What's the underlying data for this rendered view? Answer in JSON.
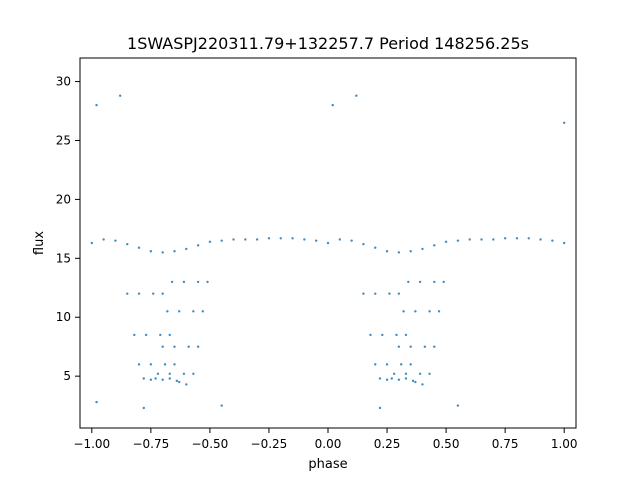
{
  "chart_data": {
    "type": "scatter",
    "title": "1SWASPJ220311.79+132257.7 Period 148256.25s",
    "xlabel": "phase",
    "ylabel": "flux",
    "xlim": [
      -1.05,
      1.05
    ],
    "ylim": [
      0.6,
      32.0
    ],
    "xticks": [
      -1.0,
      -0.75,
      -0.5,
      -0.25,
      0.0,
      0.25,
      0.5,
      0.75,
      1.0
    ],
    "xtick_labels": [
      "−1.00",
      "−0.75",
      "−0.50",
      "−0.25",
      "0.00",
      "0.25",
      "0.50",
      "0.75",
      "1.00"
    ],
    "yticks": [
      5,
      10,
      15,
      20,
      25,
      30
    ],
    "ytick_labels": [
      "5",
      "10",
      "15",
      "20",
      "25",
      "30"
    ],
    "grid": false,
    "legend": "none",
    "marker_color": "#1f77b4",
    "series": [
      {
        "values_note": "",
        "points": [
          [
            -1.0,
            16.3
          ],
          [
            -0.95,
            16.6
          ],
          [
            -0.9,
            16.5
          ],
          [
            -0.85,
            16.2
          ],
          [
            -0.8,
            15.9
          ],
          [
            -0.75,
            15.6
          ],
          [
            -0.7,
            15.5
          ],
          [
            -0.65,
            15.6
          ],
          [
            -0.6,
            15.8
          ],
          [
            -0.55,
            16.1
          ],
          [
            -0.5,
            16.4
          ],
          [
            -0.45,
            16.5
          ],
          [
            -0.4,
            16.6
          ],
          [
            -0.35,
            16.6
          ],
          [
            -0.3,
            16.6
          ],
          [
            -0.25,
            16.7
          ],
          [
            -0.2,
            16.7
          ],
          [
            -0.15,
            16.7
          ],
          [
            -0.1,
            16.6
          ],
          [
            -0.05,
            16.5
          ],
          [
            0.0,
            16.3
          ],
          [
            0.05,
            16.6
          ],
          [
            0.1,
            16.5
          ],
          [
            0.15,
            16.2
          ],
          [
            0.2,
            15.9
          ],
          [
            0.25,
            15.6
          ],
          [
            0.3,
            15.5
          ],
          [
            0.35,
            15.6
          ],
          [
            0.4,
            15.8
          ],
          [
            0.45,
            16.1
          ],
          [
            0.5,
            16.4
          ],
          [
            0.55,
            16.5
          ],
          [
            0.6,
            16.6
          ],
          [
            0.65,
            16.6
          ],
          [
            0.7,
            16.6
          ],
          [
            0.75,
            16.7
          ],
          [
            0.8,
            16.7
          ],
          [
            0.85,
            16.7
          ],
          [
            0.9,
            16.6
          ],
          [
            0.95,
            16.5
          ],
          [
            1.0,
            16.3
          ],
          [
            -0.85,
            12.0
          ],
          [
            -0.82,
            8.5
          ],
          [
            -0.8,
            6.0
          ],
          [
            -0.78,
            4.8
          ],
          [
            -0.75,
            4.7
          ],
          [
            -0.72,
            5.2
          ],
          [
            -0.7,
            7.5
          ],
          [
            -0.68,
            10.5
          ],
          [
            -0.66,
            13.0
          ],
          [
            -0.8,
            12.0
          ],
          [
            -0.77,
            8.5
          ],
          [
            -0.75,
            6.0
          ],
          [
            -0.73,
            4.8
          ],
          [
            -0.7,
            4.7
          ],
          [
            -0.67,
            5.2
          ],
          [
            -0.65,
            7.5
          ],
          [
            -0.63,
            10.5
          ],
          [
            -0.61,
            13.0
          ],
          [
            -0.74,
            12.0
          ],
          [
            -0.71,
            8.5
          ],
          [
            -0.69,
            6.0
          ],
          [
            -0.67,
            4.8
          ],
          [
            -0.64,
            4.6
          ],
          [
            -0.61,
            5.2
          ],
          [
            -0.59,
            7.5
          ],
          [
            -0.57,
            10.5
          ],
          [
            -0.55,
            13.0
          ],
          [
            -0.7,
            12.0
          ],
          [
            -0.67,
            8.5
          ],
          [
            -0.65,
            6.0
          ],
          [
            -0.63,
            4.5
          ],
          [
            -0.6,
            4.3
          ],
          [
            -0.57,
            5.2
          ],
          [
            -0.55,
            7.5
          ],
          [
            -0.53,
            10.5
          ],
          [
            -0.51,
            13.0
          ],
          [
            0.15,
            12.0
          ],
          [
            0.18,
            8.5
          ],
          [
            0.2,
            6.0
          ],
          [
            0.22,
            4.8
          ],
          [
            0.25,
            4.7
          ],
          [
            0.28,
            5.2
          ],
          [
            0.3,
            7.5
          ],
          [
            0.32,
            10.5
          ],
          [
            0.34,
            13.0
          ],
          [
            0.2,
            12.0
          ],
          [
            0.23,
            8.5
          ],
          [
            0.25,
            6.0
          ],
          [
            0.27,
            4.8
          ],
          [
            0.3,
            4.7
          ],
          [
            0.33,
            5.2
          ],
          [
            0.35,
            7.5
          ],
          [
            0.37,
            10.5
          ],
          [
            0.39,
            13.0
          ],
          [
            0.26,
            12.0
          ],
          [
            0.29,
            8.5
          ],
          [
            0.31,
            6.0
          ],
          [
            0.33,
            4.8
          ],
          [
            0.36,
            4.6
          ],
          [
            0.39,
            5.2
          ],
          [
            0.41,
            7.5
          ],
          [
            0.43,
            10.5
          ],
          [
            0.45,
            13.0
          ],
          [
            0.3,
            12.0
          ],
          [
            0.33,
            8.5
          ],
          [
            0.35,
            6.0
          ],
          [
            0.37,
            4.5
          ],
          [
            0.4,
            4.3
          ],
          [
            0.43,
            5.2
          ],
          [
            0.45,
            7.5
          ],
          [
            0.47,
            10.5
          ],
          [
            0.49,
            13.0
          ],
          [
            -0.78,
            2.3
          ],
          [
            0.22,
            2.3
          ],
          [
            -0.98,
            28.0
          ],
          [
            0.02,
            28.0
          ],
          [
            1.0,
            26.5
          ],
          [
            -0.88,
            28.8
          ],
          [
            0.12,
            28.8
          ],
          [
            -0.98,
            2.8
          ],
          [
            -0.45,
            2.5
          ],
          [
            0.55,
            2.5
          ]
        ]
      }
    ]
  }
}
